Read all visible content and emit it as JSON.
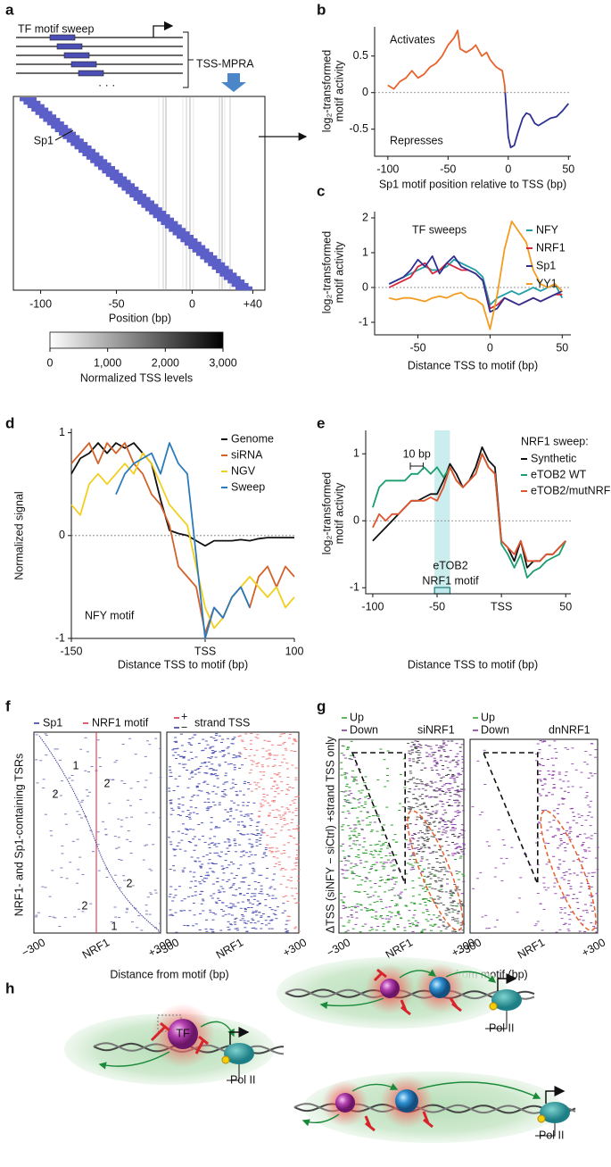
{
  "panel_a": {
    "label": "a",
    "sweep_title": "TF motif sweep",
    "assay": "TSS-MPRA",
    "ellipsis": "· · ·",
    "motif": "Sp1",
    "xlim": [
      -118,
      48
    ],
    "xticks": [
      -100,
      -50,
      0,
      {
        "value": 40,
        "label": "+40"
      }
    ],
    "xlabel": "Position (bp)",
    "colorbar": {
      "clim": [
        0,
        3000
      ],
      "ticks": [
        0,
        {
          "value": 1000,
          "label": "1,000"
        },
        {
          "value": 2000,
          "label": "2,000"
        },
        {
          "value": 3000,
          "label": "3,000"
        }
      ],
      "label": "Normalized TSS levels"
    }
  },
  "chart_data": [
    {
      "type": "line",
      "panel": "b",
      "ylabel": [
        "log₂-transformed",
        "motif activity"
      ],
      "xlabel": "Sp1 motif position relative to TSS (bp)",
      "annotations": [
        "Activates",
        "Represses"
      ],
      "color_above_zero": "#e8622c",
      "color_below_zero": "#2e3192",
      "zero_line": true,
      "xlim": [
        -111,
        52
      ],
      "ylim": [
        -0.87,
        0.9
      ],
      "xticks": [
        -100,
        -50,
        0,
        50
      ],
      "yticks": [
        -0.5,
        0,
        0.5
      ],
      "x": [
        -100,
        -95,
        -90,
        -85,
        -80,
        -75,
        -70,
        -65,
        -60,
        -55,
        -50,
        -45,
        -42,
        -40,
        -35,
        -30,
        -27,
        -22,
        -18,
        -15,
        -10,
        -5,
        -3,
        0,
        2,
        5,
        8,
        12,
        15,
        18,
        22,
        25,
        30,
        35,
        40,
        45,
        50
      ],
      "values": [
        0.1,
        0.05,
        0.15,
        0.2,
        0.3,
        0.2,
        0.25,
        0.35,
        0.4,
        0.5,
        0.65,
        0.75,
        0.85,
        0.6,
        0.55,
        0.6,
        0.65,
        0.5,
        0.55,
        0.45,
        0.35,
        0.3,
        0.1,
        -0.6,
        -0.75,
        -0.72,
        -0.55,
        -0.35,
        -0.28,
        -0.3,
        -0.42,
        -0.45,
        -0.4,
        -0.35,
        -0.33,
        -0.25,
        -0.15
      ]
    },
    {
      "type": "line",
      "panel": "c",
      "ylabel": [
        "log₂-transformed",
        "motif activity"
      ],
      "xlabel": "Distance TSS to motif (bp)",
      "annotations": [
        "TF sweeps"
      ],
      "zero_line": true,
      "xlim": [
        -80,
        56
      ],
      "ylim": [
        -1.36,
        2.18
      ],
      "xticks": [
        -50,
        0,
        50
      ],
      "yticks": [
        -1,
        0,
        1,
        2
      ],
      "x": [
        -70,
        -65,
        -60,
        -55,
        -50,
        -45,
        -40,
        -35,
        -30,
        -25,
        -20,
        -15,
        -10,
        -5,
        0,
        5,
        10,
        15,
        20,
        25,
        30,
        35,
        40,
        45,
        50
      ],
      "series": [
        {
          "name": "NFY",
          "color": "#1f9ea8",
          "values": [
            0.1,
            0.2,
            0.3,
            0.4,
            0.5,
            0.6,
            0.5,
            0.5,
            0.6,
            0.8,
            0.7,
            0.6,
            0.5,
            0.3,
            -0.5,
            -0.3,
            -0.2,
            -0.1,
            -0.2,
            -0.1,
            0.0,
            -0.1,
            0.0,
            0.1,
            -0.3
          ]
        },
        {
          "name": "NRF1",
          "color": "#d7263d",
          "values": [
            0.0,
            0.1,
            0.2,
            0.3,
            0.6,
            0.7,
            0.4,
            0.5,
            0.7,
            0.6,
            0.5,
            0.5,
            0.4,
            0.2,
            -0.6,
            -0.5,
            -0.3,
            -0.4,
            -0.5,
            -0.4,
            -0.3,
            -0.4,
            -0.3,
            -0.2,
            -0.2
          ]
        },
        {
          "name": "Sp1",
          "color": "#2e3192",
          "values": [
            0.1,
            0.2,
            0.3,
            0.5,
            0.8,
            0.6,
            0.9,
            0.4,
            0.7,
            0.9,
            0.6,
            0.5,
            0.4,
            0.2,
            -0.7,
            -0.6,
            -0.3,
            -0.4,
            -0.5,
            -0.4,
            -0.3,
            -0.4,
            -0.3,
            -0.2,
            -0.1
          ]
        },
        {
          "name": "YY1",
          "color": "#f39c1f",
          "values": [
            -0.3,
            -0.35,
            -0.3,
            -0.3,
            -0.35,
            -0.4,
            -0.3,
            -0.25,
            -0.3,
            -0.2,
            -0.15,
            -0.3,
            -0.35,
            -0.5,
            -1.2,
            -0.2,
            1.1,
            1.9,
            1.6,
            1.3,
            0.5,
            0.1,
            0.0,
            0.1,
            -0.1
          ]
        }
      ]
    },
    {
      "type": "line",
      "panel": "d",
      "ylabel": [
        "Normalized signal"
      ],
      "xlabel": "Distance TSS to motif (bp)",
      "annotations": [
        "NFY motif"
      ],
      "zero_line": true,
      "xlim": [
        -150,
        100
      ],
      "ylim": [
        -1,
        1.04
      ],
      "xticks": [
        -150,
        {
          "value": 0,
          "label": "TSS"
        },
        100
      ],
      "yticks": [
        -1,
        0,
        1
      ],
      "x": [
        -150,
        -140,
        -130,
        -120,
        -110,
        -100,
        -90,
        -80,
        -70,
        -60,
        -50,
        -40,
        -30,
        -20,
        -10,
        0,
        10,
        20,
        30,
        40,
        50,
        60,
        70,
        80,
        90,
        100
      ],
      "series": [
        {
          "name": "Genome",
          "color": "#111111",
          "values": [
            0.6,
            0.75,
            0.8,
            0.9,
            0.8,
            0.9,
            0.85,
            0.9,
            0.8,
            0.7,
            0.35,
            0.05,
            0.02,
            0.0,
            -0.05,
            -0.1,
            -0.05,
            -0.05,
            -0.05,
            -0.04,
            -0.05,
            -0.03,
            -0.02,
            -0.02,
            -0.02,
            -0.02
          ]
        },
        {
          "name": "siRNA",
          "color": "#d2622a",
          "values": [
            0.7,
            0.8,
            0.9,
            0.7,
            0.9,
            0.8,
            0.9,
            0.7,
            0.6,
            0.4,
            0.3,
            0.1,
            -0.3,
            -0.4,
            -0.5,
            -0.95,
            -0.7,
            -0.8,
            -0.6,
            -0.5,
            -0.7,
            -0.4,
            -0.3,
            -0.5,
            -0.3,
            -0.4
          ]
        },
        {
          "name": "NGV",
          "color": "#f2cf1d",
          "values": [
            0.3,
            0.2,
            0.5,
            0.6,
            0.5,
            0.6,
            0.7,
            0.6,
            0.8,
            0.7,
            0.5,
            0.3,
            0.2,
            0.1,
            -0.3,
            -0.7,
            -0.9,
            -0.8,
            -0.6,
            -0.5,
            -0.4,
            -0.5,
            -0.6,
            -0.5,
            -0.7,
            -0.6
          ]
        },
        {
          "name": "Sweep",
          "color": "#2b7bba",
          "values": [
            null,
            null,
            null,
            null,
            null,
            0.4,
            0.6,
            0.7,
            0.75,
            0.8,
            0.6,
            0.9,
            0.7,
            0.6,
            -0.2,
            -1.0,
            -0.7,
            -0.8,
            -0.6,
            -0.5,
            -0.7,
            null,
            null,
            null,
            null,
            null
          ]
        }
      ]
    },
    {
      "type": "line",
      "panel": "e",
      "ylabel": [
        "log₂-transformed",
        "motif activity"
      ],
      "xlabel": "Distance TSS to motif (bp)",
      "legend_title": "NRF1 sweep:",
      "annotations": [
        "eTOB2",
        "NRF1 motif"
      ],
      "scale_bar": {
        "value": 10,
        "label": "10 bp"
      },
      "highlight": [
        -52,
        -40
      ],
      "zero_line": true,
      "xlim": [
        -105.5,
        54
      ],
      "ylim": [
        -1.09,
        1.35
      ],
      "xticks": [
        -100,
        -50,
        {
          "value": 0,
          "label": "TSS"
        },
        50
      ],
      "yticks": [
        -1,
        0,
        1
      ],
      "x": [
        -100,
        -95,
        -90,
        -85,
        -80,
        -75,
        -70,
        -65,
        -60,
        -55,
        -50,
        -45,
        -40,
        -35,
        -30,
        -25,
        -20,
        -15,
        -10,
        -5,
        0,
        5,
        10,
        15,
        20,
        25,
        30,
        35,
        40,
        45,
        50
      ],
      "series": [
        {
          "name": "Synthetic",
          "color": "#111111",
          "values": [
            -0.3,
            -0.2,
            -0.1,
            0.0,
            0.1,
            0.2,
            0.3,
            0.3,
            0.35,
            0.4,
            0.4,
            0.6,
            0.85,
            0.7,
            0.5,
            0.6,
            0.8,
            1.1,
            0.9,
            0.8,
            -0.3,
            -0.4,
            -0.6,
            -0.3,
            -0.7,
            -0.6,
            -0.6,
            -0.5,
            -0.5,
            -0.4,
            -0.3
          ]
        },
        {
          "name": "eTOB2 WT",
          "color": "#1a9e6e",
          "values": [
            0.2,
            0.5,
            0.6,
            0.6,
            0.6,
            0.6,
            0.7,
            0.7,
            0.8,
            0.7,
            0.8,
            0.65,
            0.8,
            0.6,
            0.5,
            0.6,
            0.7,
            1.0,
            0.8,
            0.7,
            -0.35,
            -0.5,
            -0.7,
            -0.5,
            -0.85,
            -0.75,
            -0.7,
            -0.6,
            -0.55,
            -0.5,
            -0.3
          ]
        },
        {
          "name": "eTOB2/mutNRF1",
          "color": "#e0552e",
          "values": [
            -0.1,
            0.1,
            0.0,
            0.1,
            0.1,
            0.2,
            0.3,
            0.3,
            0.3,
            0.35,
            0.3,
            0.5,
            0.8,
            0.6,
            0.5,
            0.6,
            0.7,
            1.0,
            0.8,
            0.7,
            -0.3,
            -0.4,
            -0.5,
            -0.3,
            -0.6,
            -0.6,
            -0.6,
            -0.5,
            -0.5,
            -0.4,
            -0.3
          ]
        }
      ]
    }
  ],
  "panel_f": {
    "label": "f",
    "legend": {
      "sp1": "Sp1",
      "nrf1": "NRF1 motif",
      "plus": "+",
      "minus": "−",
      "strand": "strand TSS"
    },
    "ylabel": "NRF1- and Sp1-containing TSRs",
    "region_numbers": [
      "1",
      "2",
      "2",
      "2",
      "2",
      "1"
    ],
    "xticks": [
      "−300",
      "NRF1",
      "+300"
    ],
    "xlabel": "Distance from motif (bp)"
  },
  "panel_g": {
    "label": "g",
    "panels": [
      {
        "legend": [
          "Up",
          "Down"
        ],
        "title": "siNRF1"
      },
      {
        "legend": [
          "Up",
          "Down"
        ],
        "title": "dnNRF1"
      }
    ],
    "ylabel": "ΔTSS (siNFY − siCtrl) +strand TSS only",
    "xticks": [
      "−300",
      "NRF1",
      "+300"
    ],
    "xlabel": "Distance from motif (bp)"
  },
  "panel_h": {
    "label": "h",
    "tf": "TF",
    "pol": [
      "Pol II",
      "Pol II",
      "Pol II"
    ]
  }
}
